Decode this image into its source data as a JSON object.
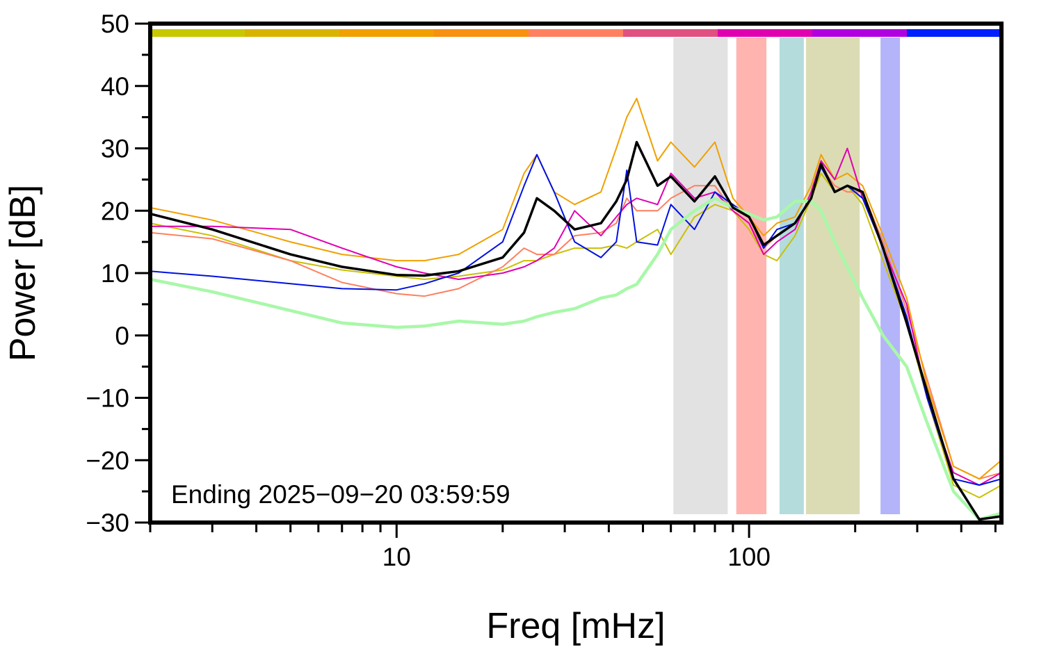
{
  "chart_data": {
    "type": "line",
    "xlabel": "Freq [mHz]",
    "ylabel": "Power [dB]",
    "annotation": "Ending 2025−09−20 03:59:59",
    "xscale": "log",
    "xlim": [
      2,
      520
    ],
    "ylim": [
      -30,
      50
    ],
    "xticks": [
      10,
      100
    ],
    "xminorticks": [
      2,
      3,
      4,
      5,
      6,
      7,
      8,
      9,
      20,
      30,
      40,
      50,
      60,
      70,
      80,
      90,
      200,
      300,
      400,
      500
    ],
    "yticks": [
      {
        "value": -30,
        "label": "−30"
      },
      {
        "value": -20,
        "label": "−20"
      },
      {
        "value": -10,
        "label": "−10"
      },
      0,
      10,
      20,
      30,
      40,
      50
    ],
    "yminorticks": [
      -25,
      -15,
      -5,
      5,
      15,
      25,
      35,
      45
    ],
    "colorbar": [
      "#c8c800",
      "#d8b400",
      "#f0a000",
      "#f89010",
      "#ff7f60",
      "#e05080",
      "#e000b0",
      "#b000e0",
      "#0020ff"
    ],
    "bands": [
      {
        "range": [
          61,
          87
        ],
        "color": "#e2e2e2"
      },
      {
        "range": [
          92,
          112
        ],
        "color": "#ffb4b0"
      },
      {
        "range": [
          122,
          143
        ],
        "color": "#b4dcdc"
      },
      {
        "range": [
          145,
          206
        ],
        "color": "#dcdcb4"
      },
      {
        "range": [
          236,
          268
        ],
        "color": "#b4b4fa"
      }
    ],
    "x": [
      2,
      3,
      5,
      7,
      10,
      12,
      15,
      20,
      23,
      25,
      28,
      32,
      38,
      42,
      45,
      48,
      55,
      60,
      70,
      80,
      90,
      100,
      110,
      120,
      135,
      150,
      160,
      175,
      190,
      210,
      240,
      280,
      320,
      380,
      450,
      520
    ],
    "series": [
      {
        "name": "yellow",
        "color": "#c8c000",
        "linewidth": 2,
        "values": [
          18,
          16,
          12,
          10.5,
          9.5,
          9,
          9.5,
          10.5,
          12,
          12,
          13,
          14,
          14,
          14.5,
          14,
          15,
          17,
          13,
          19,
          21,
          20,
          17,
          13,
          12,
          16,
          22,
          26,
          23,
          24,
          21,
          12,
          2,
          -10,
          -24,
          -26,
          -24
        ]
      },
      {
        "name": "salmon",
        "color": "#ff7f60",
        "linewidth": 2,
        "values": [
          16.5,
          15.5,
          12,
          8.5,
          6.7,
          6.3,
          7.5,
          11,
          14,
          13,
          13,
          16,
          16.5,
          18,
          22,
          20,
          20,
          22,
          24,
          24,
          20,
          18,
          14,
          16,
          18,
          22,
          27,
          24,
          23,
          23,
          15,
          4,
          -7,
          -21,
          -23,
          -22
        ]
      },
      {
        "name": "orange",
        "color": "#f0a000",
        "linewidth": 2,
        "values": [
          20.5,
          18.5,
          15,
          13,
          12,
          12,
          13,
          17,
          26,
          29,
          23,
          21,
          23,
          30,
          35,
          38,
          28,
          31,
          27,
          31,
          22,
          19,
          16,
          18,
          19,
          24,
          29,
          25,
          26,
          24,
          16,
          6,
          -8,
          -21,
          -23,
          -20
        ]
      },
      {
        "name": "magenta",
        "color": "#e000b0",
        "linewidth": 2,
        "values": [
          17.5,
          17.5,
          17,
          14,
          11,
          10,
          9,
          10,
          11,
          12,
          14,
          20,
          16,
          19,
          21,
          22,
          21,
          26,
          22,
          23,
          20,
          18,
          13,
          15,
          17,
          23,
          28,
          25,
          30,
          22,
          14,
          5,
          -10,
          -22,
          -24,
          -22
        ]
      },
      {
        "name": "blue",
        "color": "#0010e0",
        "linewidth": 2,
        "values": [
          10.3,
          9.5,
          8.3,
          7.5,
          7.3,
          8.3,
          10,
          15,
          24,
          29,
          23,
          15,
          12.5,
          15,
          26.5,
          15,
          14.5,
          21,
          17,
          23,
          21,
          19,
          14,
          17,
          18,
          22,
          27,
          23,
          24,
          22,
          14,
          3,
          -10,
          -23,
          -24,
          -23
        ]
      },
      {
        "name": "green",
        "color": "#a8f8a8",
        "linewidth": 4.5,
        "values": [
          9,
          7,
          4,
          2,
          1.3,
          1.5,
          2.3,
          1.8,
          2.3,
          3,
          3.7,
          4.3,
          6,
          6.5,
          7.5,
          8.2,
          13,
          17,
          20,
          22,
          20.5,
          19.5,
          18.5,
          19,
          21.5,
          21.5,
          20,
          15,
          11,
          6,
          0,
          -5,
          -14,
          -25,
          -29.5,
          -28.5
        ]
      },
      {
        "name": "mean",
        "color": "#000000",
        "linewidth": 3.5,
        "values": [
          19.5,
          17,
          13,
          11,
          9.7,
          9.6,
          10.3,
          12.5,
          16.5,
          22,
          20,
          17,
          18,
          21.5,
          25,
          31,
          24,
          25.5,
          21.5,
          25.5,
          20.5,
          19,
          14.5,
          16,
          18,
          22,
          27.5,
          23,
          24,
          23,
          14,
          2,
          -9,
          -23,
          -29.5,
          -29
        ]
      }
    ]
  }
}
